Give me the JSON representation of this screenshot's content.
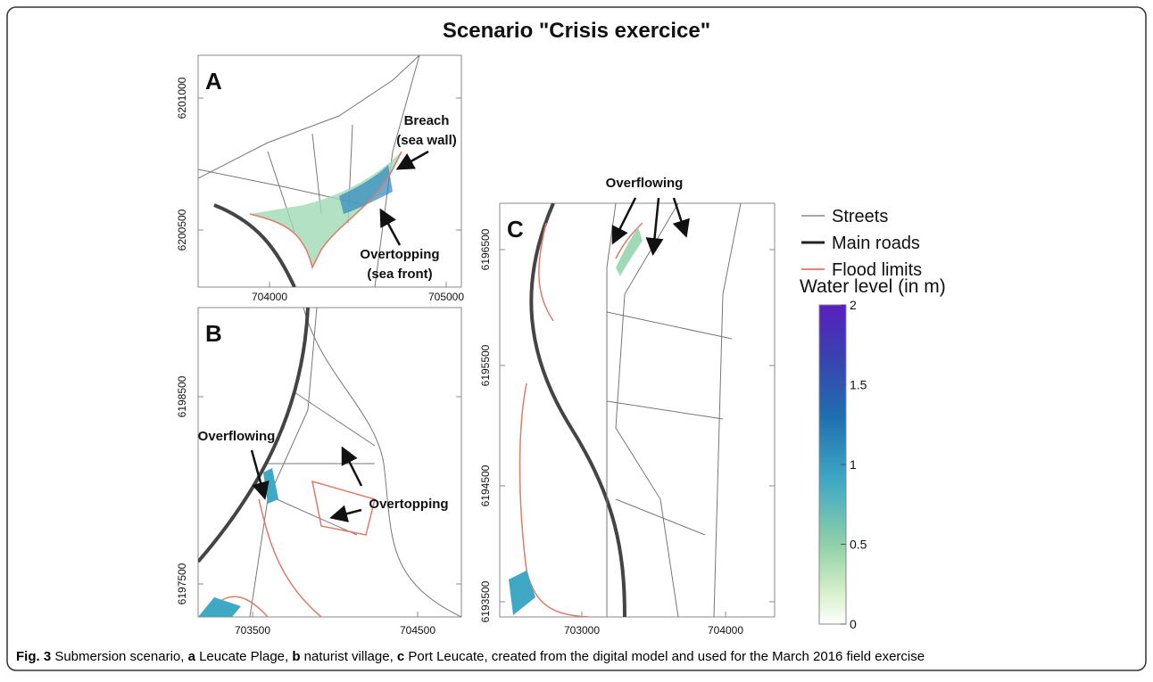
{
  "title": "Scenario \"Crisis exercice\"",
  "panels": [
    {
      "label": "A",
      "y_ticks": [
        6201000,
        6200500
      ],
      "x_ticks": [
        704000,
        705000
      ],
      "annotations": [
        {
          "lines": [
            "Breach",
            "(sea wall)"
          ]
        },
        {
          "lines": [
            "Overtopping",
            "(sea front)"
          ]
        }
      ]
    },
    {
      "label": "B",
      "y_ticks": [
        6198500,
        6197500
      ],
      "x_ticks": [
        703500,
        704500
      ],
      "annotations": [
        {
          "lines": [
            "Overflowing"
          ]
        },
        {
          "lines": [
            "Overtopping"
          ]
        }
      ]
    },
    {
      "label": "C",
      "y_ticks": [
        6196500,
        6195500,
        6194500,
        6193500
      ],
      "x_ticks": [
        703000,
        704000
      ],
      "annotations": [
        {
          "lines": [
            "Overflowing"
          ]
        }
      ]
    }
  ],
  "legend": {
    "items": [
      "Streets",
      "Main roads",
      "Flood limits"
    ],
    "colorbar_title": "Water level (in m)",
    "colorbar_ticks": [
      0,
      0.5,
      1,
      1.5,
      2
    ]
  },
  "caption": [
    {
      "text": "Fig. 3",
      "bold": true
    },
    {
      "text": " Submersion scenario, ",
      "bold": false
    },
    {
      "text": "a",
      "bold": true
    },
    {
      "text": " Leucate Plage, ",
      "bold": false
    },
    {
      "text": "b",
      "bold": true
    },
    {
      "text": " naturist village, ",
      "bold": false
    },
    {
      "text": "c",
      "bold": true
    },
    {
      "text": " Port Leucate, created from the digital model and used for the March 2016 field exercise",
      "bold": false
    }
  ]
}
